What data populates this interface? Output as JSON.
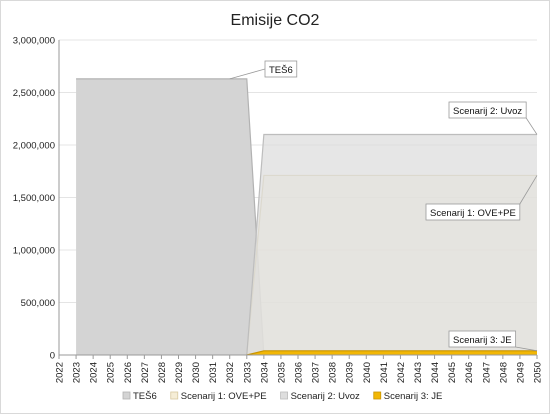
{
  "chart_data": {
    "type": "area",
    "title": "Emisije CO2",
    "xlabel": "",
    "ylabel": "",
    "x": [
      2022,
      2023,
      2024,
      2025,
      2026,
      2027,
      2028,
      2029,
      2030,
      2031,
      2032,
      2033,
      2034,
      2035,
      2036,
      2037,
      2038,
      2039,
      2040,
      2041,
      2042,
      2043,
      2044,
      2045,
      2046,
      2047,
      2048,
      2049,
      2050
    ],
    "ylim": [
      0,
      3000000
    ],
    "yticks": [
      0,
      500000,
      1000000,
      1500000,
      2000000,
      2500000,
      3000000
    ],
    "ytick_labels": [
      "0",
      "500,000",
      "1,000,000",
      "1,500,000",
      "2,000,000",
      "2,500,000",
      "3,000,000"
    ],
    "grid": true,
    "legend_position": "bottom",
    "series": [
      {
        "name": "TEŠ6",
        "color": "#d4d4d4",
        "stroke": "#b2b2b2",
        "fill_opacity": 1,
        "values": [
          null,
          2630000,
          2630000,
          2630000,
          2630000,
          2630000,
          2630000,
          2630000,
          2630000,
          2630000,
          2630000,
          2630000,
          0,
          null,
          null,
          null,
          null,
          null,
          null,
          null,
          null,
          null,
          null,
          null,
          null,
          null,
          null,
          null,
          null
        ]
      },
      {
        "name": "Scenarij 1: OVE+PE",
        "color": "#f5edd6",
        "stroke": "#d8c9a0",
        "fill_opacity": 0.55,
        "values": [
          null,
          null,
          null,
          null,
          null,
          null,
          null,
          null,
          null,
          null,
          null,
          0,
          1710000,
          1710000,
          1710000,
          1710000,
          1710000,
          1710000,
          1710000,
          1710000,
          1710000,
          1710000,
          1710000,
          1710000,
          1710000,
          1710000,
          1710000,
          1710000,
          1710000
        ]
      },
      {
        "name": "Scenarij 2: Uvoz",
        "color": "#dedede",
        "stroke": "#bdbdbd",
        "fill_opacity": 0.75,
        "values": [
          null,
          null,
          null,
          null,
          null,
          null,
          null,
          null,
          null,
          null,
          null,
          0,
          2100000,
          2100000,
          2100000,
          2100000,
          2100000,
          2100000,
          2100000,
          2100000,
          2100000,
          2100000,
          2100000,
          2100000,
          2100000,
          2100000,
          2100000,
          2100000,
          2100000
        ]
      },
      {
        "name": "Scenarij 3: JE",
        "color": "#f2b705",
        "stroke": "#c99400",
        "fill_opacity": 1,
        "values": [
          null,
          null,
          null,
          null,
          null,
          null,
          null,
          null,
          null,
          null,
          null,
          0,
          40000,
          40000,
          40000,
          40000,
          40000,
          40000,
          40000,
          40000,
          40000,
          40000,
          40000,
          40000,
          40000,
          40000,
          40000,
          40000,
          40000
        ]
      }
    ],
    "annotations": [
      {
        "id": "tes6",
        "text": "TEŠ6",
        "series": "TEŠ6",
        "x": 2032
      },
      {
        "id": "uvoz",
        "text": "Scenarij 2: Uvoz",
        "series": "Scenarij 2: Uvoz",
        "x": 2050
      },
      {
        "id": "ove",
        "text": "Scenarij 1: OVE+PE",
        "series": "Scenarij 1: OVE+PE",
        "x": 2050
      },
      {
        "id": "je",
        "text": "Scenarij 3: JE",
        "series": "Scenarij 3: JE",
        "x": 2050
      }
    ]
  }
}
